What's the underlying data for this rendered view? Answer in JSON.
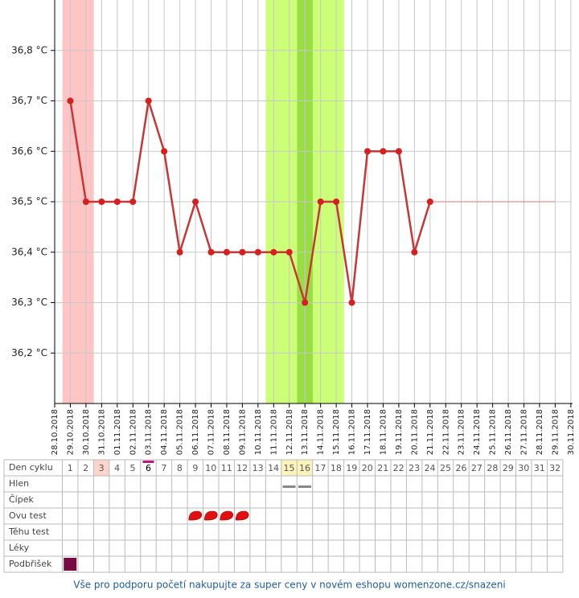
{
  "chart_data": {
    "type": "line",
    "categories": [
      "28.10.2018",
      "29.10.2018",
      "30.10.2018",
      "31.10.2018",
      "01.11.2018",
      "02.11.2018",
      "03.11.2018",
      "04.11.2018",
      "05.11.2018",
      "06.11.2018",
      "07.11.2018",
      "08.11.2018",
      "09.11.2018",
      "10.11.2018",
      "11.11.2018",
      "12.11.2018",
      "13.11.2018",
      "14.11.2018",
      "15.11.2018",
      "16.11.2018",
      "17.11.2018",
      "18.11.2018",
      "19.11.2018",
      "20.11.2018",
      "21.11.2018",
      "22.11.2018",
      "23.11.2018",
      "24.11.2018",
      "25.11.2018",
      "26.11.2018",
      "27.11.2018",
      "28.11.2018",
      "29.11.2018",
      "30.11.2018"
    ],
    "series": [
      {
        "color": "#c83737",
        "values": [
          null,
          36.7,
          36.5,
          36.5,
          36.5,
          36.5,
          36.7,
          36.6,
          36.4,
          36.5,
          36.4,
          36.4,
          36.4,
          36.4,
          36.4,
          36.4,
          36.3,
          36.5,
          36.5,
          36.3,
          36.6,
          36.6,
          36.6,
          36.4,
          36.5,
          null,
          null,
          null,
          null,
          null,
          null,
          null,
          null,
          null
        ]
      },
      {
        "color": "#c83737",
        "style": "dotted",
        "values": [
          null,
          null,
          null,
          null,
          null,
          null,
          null,
          null,
          null,
          null,
          null,
          null,
          null,
          null,
          null,
          null,
          null,
          null,
          null,
          null,
          null,
          null,
          null,
          null,
          36.5,
          36.5,
          36.5,
          36.5,
          36.5,
          36.5,
          36.5,
          36.5,
          36.5,
          null
        ]
      }
    ],
    "bands": [
      {
        "from": 1,
        "to": 2,
        "color": "#ffc4c4"
      },
      {
        "from": 14,
        "to": 18,
        "color": "#ccff77"
      },
      {
        "from": 16,
        "to": 16,
        "color": "#99dd44"
      }
    ],
    "ylim": [
      36.1,
      36.9
    ],
    "yticks": [
      {
        "value": 36.2,
        "label": "36,2 °C"
      },
      {
        "value": 36.3,
        "label": "36,3 °C"
      },
      {
        "value": 36.4,
        "label": "36,4 °C"
      },
      {
        "value": 36.5,
        "label": "36,5 °C"
      },
      {
        "value": 36.6,
        "label": "36,6 °C"
      },
      {
        "value": 36.7,
        "label": "36,7 °C"
      },
      {
        "value": 36.8,
        "label": "36,8 °C"
      }
    ],
    "grid": true
  },
  "cycle_table": {
    "rows": [
      "Den cyklu",
      "Hlen",
      "Čípek",
      "Ovu test",
      "Těhu test",
      "Léky",
      "Podbřišek"
    ],
    "days": [
      1,
      2,
      3,
      4,
      5,
      6,
      7,
      8,
      9,
      10,
      11,
      12,
      13,
      14,
      15,
      16,
      17,
      18,
      19,
      20,
      21,
      22,
      23,
      24,
      25,
      26,
      27,
      28,
      29,
      30,
      31,
      32
    ],
    "highlight_days": [
      {
        "day": 3,
        "color": "#fbd5cc"
      },
      {
        "day": 15,
        "color": "#fbf3bb"
      },
      {
        "day": 16,
        "color": "#fbf3bb"
      }
    ],
    "current_day": 6,
    "hlen_days": [
      15,
      16
    ],
    "ovu_test_days": [
      9,
      10,
      11,
      12
    ],
    "podbrisek_days": [
      1
    ]
  },
  "footer": "Vše pro podporu početí nakupujte za super ceny v novém eshopu womenzone.cz/snazeni"
}
